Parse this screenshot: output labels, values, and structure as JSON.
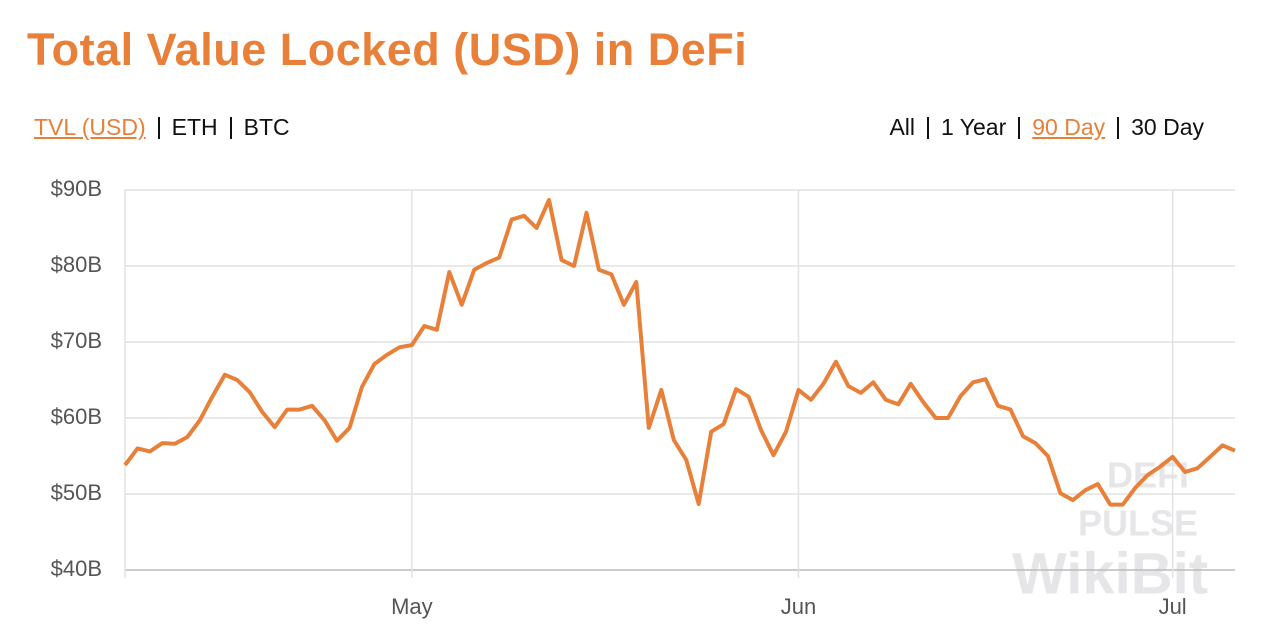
{
  "title": "Total Value Locked (USD) in DeFi",
  "views": {
    "items": [
      "TVL (USD)",
      "ETH",
      "BTC"
    ],
    "active": 0
  },
  "ranges": {
    "items": [
      "All",
      "1 Year",
      "90 Day",
      "30 Day"
    ],
    "active": 2
  },
  "watermark": [
    "DEFI",
    "PULSE",
    "WikiBit"
  ],
  "chart_data": {
    "type": "line",
    "color": "#e8803a",
    "grid": true,
    "categories": [
      null,
      null,
      null,
      null,
      null,
      null,
      null,
      null,
      null,
      null,
      null,
      null,
      null,
      null,
      null,
      null,
      null,
      null,
      null,
      null,
      null,
      null,
      null,
      "May",
      null,
      null,
      null,
      null,
      null,
      null,
      null,
      null,
      null,
      null,
      null,
      null,
      null,
      null,
      null,
      null,
      null,
      null,
      null,
      null,
      null,
      null,
      null,
      null,
      null,
      null,
      null,
      null,
      null,
      null,
      "Jun",
      null,
      null,
      null,
      null,
      null,
      null,
      null,
      null,
      null,
      null,
      null,
      null,
      null,
      null,
      null,
      null,
      null,
      null,
      null,
      null,
      null,
      null,
      null,
      null,
      null,
      null,
      null,
      null,
      null,
      "Jul",
      null,
      null,
      null,
      null,
      null
    ],
    "values": [
      53.8,
      56.0,
      55.6,
      56.7,
      56.6,
      57.5,
      59.7,
      62.8,
      65.7,
      65.0,
      63.4,
      60.8,
      58.8,
      61.1,
      61.1,
      61.6,
      59.7,
      57.0,
      58.7,
      64.1,
      67.1,
      68.3,
      69.3,
      69.6,
      72.1,
      71.6,
      79.2,
      74.9,
      79.5,
      80.4,
      81.1,
      86.1,
      86.6,
      85.0,
      88.7,
      80.8,
      80.0,
      87.0,
      79.5,
      78.9,
      74.9,
      77.9,
      58.7,
      63.7,
      57.1,
      54.5,
      48.7,
      58.2,
      59.2,
      63.8,
      62.8,
      58.4,
      55.1,
      58.2,
      63.7,
      62.4,
      64.5,
      67.4,
      64.2,
      63.3,
      64.7,
      62.4,
      61.8,
      64.5,
      62.1,
      60.0,
      60.0,
      62.9,
      64.7,
      65.1,
      61.6,
      61.1,
      57.6,
      56.7,
      55.0,
      50.1,
      49.2,
      50.5,
      51.3,
      48.6,
      48.6,
      50.8,
      52.5,
      53.6,
      54.9,
      52.9,
      53.4,
      54.9,
      56.4,
      55.7
    ],
    "ylim": [
      40,
      90
    ],
    "yticks": [
      {
        "value": 40,
        "label": "$40B"
      },
      {
        "value": 50,
        "label": "$50B"
      },
      {
        "value": 60,
        "label": "$60B"
      },
      {
        "value": 70,
        "label": "$70B"
      },
      {
        "value": 80,
        "label": "$80B"
      },
      {
        "value": 90,
        "label": "$90B"
      }
    ]
  }
}
